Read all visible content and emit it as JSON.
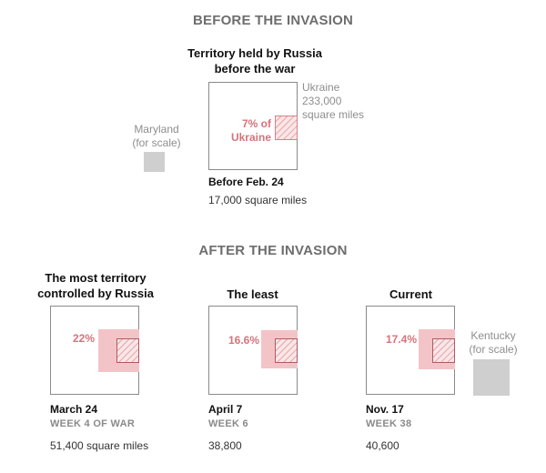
{
  "before": {
    "heading": "BEFORE THE INVASION",
    "title_line1": "Territory held by Russia",
    "title_line2": "before the war",
    "ukraine_label": "Ukraine",
    "ukraine_area": "233,000",
    "ukraine_unit": "square miles",
    "pct_line1": "7% of",
    "pct_line2": "Ukraine",
    "maryland_line1": "Maryland",
    "maryland_line2": "(for scale)",
    "date": "Before Feb. 24",
    "area": "17,000 square miles"
  },
  "after": {
    "heading": "AFTER THE INVASION",
    "panels": [
      {
        "title_line1": "The most territory",
        "title_line2": "controlled by Russia",
        "pct": "22%",
        "date": "March 24",
        "week": "WEEK 4 OF WAR",
        "area": "51,400 square miles"
      },
      {
        "title_line1": "The least",
        "pct": "16.6%",
        "date": "April 7",
        "week": "WEEK 6",
        "area": "38,800"
      },
      {
        "title_line1": "Current",
        "pct": "17.4%",
        "date": "Nov. 17",
        "week": "WEEK 38",
        "area": "40,600"
      }
    ],
    "kentucky_line1": "Kentucky",
    "kentucky_line2": "(for scale)"
  },
  "colors": {
    "russia_held": "#f3c4c7",
    "pre_war_hatch": "#d98088",
    "percent_text": "#d4747a",
    "scale_square": "#cfcfcf"
  }
}
